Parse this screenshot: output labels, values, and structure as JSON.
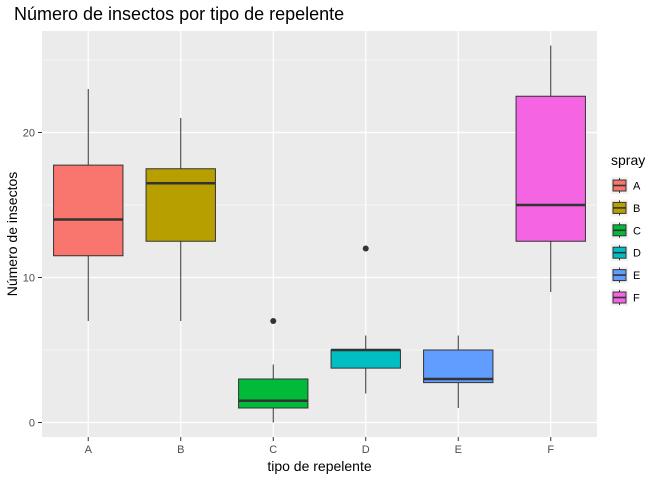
{
  "chart_data": {
    "type": "box",
    "title": "Número de insectos por tipo de repelente",
    "xlabel": "tipo de repelente",
    "ylabel": "Número de insectos",
    "categories": [
      "A",
      "B",
      "C",
      "D",
      "E",
      "F"
    ],
    "ylim": [
      -1,
      27
    ],
    "yticks": [
      0,
      10,
      20
    ],
    "y_tick_labels": [
      "0",
      "10",
      "20"
    ],
    "boxes": [
      {
        "category": "A",
        "min": 7,
        "q1": 11.5,
        "median": 14,
        "q3": 17.75,
        "max": 23,
        "outliers": []
      },
      {
        "category": "B",
        "min": 7,
        "q1": 12.5,
        "median": 16.5,
        "q3": 17.5,
        "max": 21,
        "outliers": []
      },
      {
        "category": "C",
        "min": 0,
        "q1": 1,
        "median": 1.5,
        "q3": 3,
        "max": 4,
        "outliers": [
          7
        ]
      },
      {
        "category": "D",
        "min": 2,
        "q1": 3.75,
        "median": 5,
        "q3": 5,
        "max": 6,
        "outliers": [
          12
        ]
      },
      {
        "category": "E",
        "min": 1,
        "q1": 2.75,
        "median": 3,
        "q3": 5,
        "max": 6,
        "outliers": []
      },
      {
        "category": "F",
        "min": 9,
        "q1": 12.5,
        "median": 15,
        "q3": 22.5,
        "max": 26,
        "outliers": []
      }
    ],
    "fill_colors": [
      "#F8766D",
      "#B79F00",
      "#00BA38",
      "#00BFC4",
      "#619CFF",
      "#F564E3"
    ],
    "panel_background": "#EBEBEB",
    "grid": true,
    "legend": {
      "title": "spray",
      "position": "right",
      "entries": [
        "A",
        "B",
        "C",
        "D",
        "E",
        "F"
      ]
    }
  }
}
